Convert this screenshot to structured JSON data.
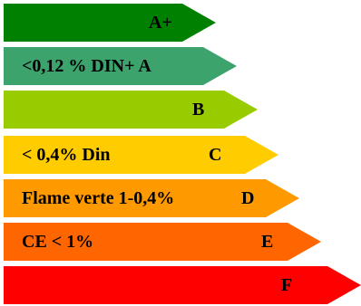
{
  "classes": [
    {
      "id": "a-plus",
      "class_label": "A+",
      "description": "",
      "color": "#008000"
    },
    {
      "id": "a",
      "class_label": "",
      "description": "<0,12 % DIN+ A",
      "color": "#3CA36C"
    },
    {
      "id": "b",
      "class_label": "B",
      "description": "",
      "color": "#99CC00"
    },
    {
      "id": "c",
      "class_label": "C",
      "description": "< 0,4% Din",
      "color": "#FFCC00"
    },
    {
      "id": "d",
      "class_label": "D",
      "description": "Flame verte 1-0,4%",
      "color": "#FF9900"
    },
    {
      "id": "e",
      "class_label": "E",
      "description": "CE < 1%",
      "color": "#FF6600"
    },
    {
      "id": "f",
      "class_label": "F",
      "description": "",
      "color": "#FF0000"
    }
  ]
}
